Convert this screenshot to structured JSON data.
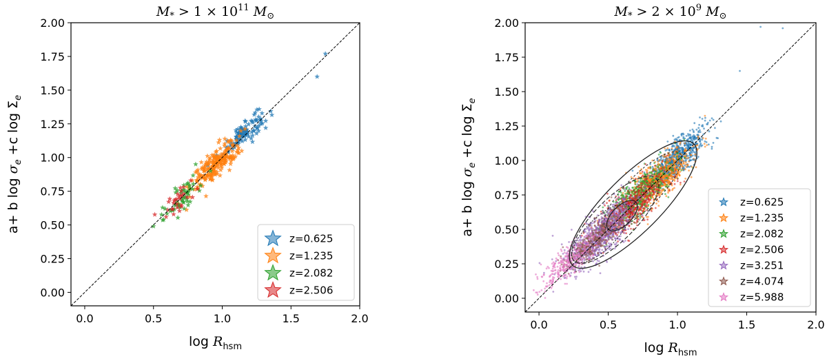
{
  "chart_data": [
    {
      "type": "scatter",
      "title": "M_* > 1 × 10^11 M_⊙",
      "title_parts": {
        "lhs": "M",
        "sub": "*",
        "op": " > 1 × 10",
        "exp": "11",
        "unit": " M",
        "unit_sub": "⊙"
      },
      "xlabel": "log R_hsm",
      "xlabel_parts": {
        "pre": "log ",
        "var": "R",
        "sub": "hsm"
      },
      "ylabel": "a+ b log σ_e +c log Σ_e",
      "ylabel_parts": {
        "p1": "a+ b log ",
        "v1": "σ",
        "s1": "e",
        "p2": " +c log Σ",
        "s2": "e"
      },
      "xlim": [
        -0.1,
        2.0
      ],
      "ylim": [
        -0.1,
        2.0
      ],
      "xticks": [
        "0.0",
        "0.5",
        "1.0",
        "1.5",
        "2.0"
      ],
      "yticks": [
        "0.00",
        "0.25",
        "0.50",
        "0.75",
        "1.00",
        "1.25",
        "1.50",
        "1.75",
        "2.00"
      ],
      "marker": "star",
      "legend": "lower-right",
      "one_to_one_line": true,
      "series": [
        {
          "name": "z=0.625",
          "color": "#1f77b4",
          "center": [
            1.15,
            1.18
          ],
          "spread": 0.1,
          "count": 110,
          "extra": [
            [
              1.69,
              1.6
            ],
            [
              1.75,
              1.77
            ]
          ]
        },
        {
          "name": "z=1.235",
          "color": "#ff7f0e",
          "center": [
            0.95,
            0.95
          ],
          "spread": 0.12,
          "count": 210,
          "extra": []
        },
        {
          "name": "z=2.082",
          "color": "#2ca02c",
          "center": [
            0.72,
            0.72
          ],
          "spread": 0.12,
          "count": 55,
          "extra": [
            [
              0.5,
              0.49
            ]
          ]
        },
        {
          "name": "z=2.506",
          "color": "#d62728",
          "center": [
            0.66,
            0.66
          ],
          "spread": 0.1,
          "count": 30,
          "extra": []
        }
      ]
    },
    {
      "type": "scatter",
      "title": "M_* > 2 × 10^9 M_⊙",
      "title_parts": {
        "lhs": "M",
        "sub": "*",
        "op": " > 2 × 10",
        "exp": "9",
        "unit": " M",
        "unit_sub": "⊙"
      },
      "xlabel": "log R_hsm",
      "xlabel_parts": {
        "pre": "log ",
        "var": "R",
        "sub": "hsm"
      },
      "ylabel": "a+ b log σ_e +c log Σ_e",
      "ylabel_parts": {
        "p1": "a+ b log ",
        "v1": "σ",
        "s1": "e",
        "p2": " +c log Σ",
        "s2": "e"
      },
      "xlim": [
        -0.1,
        2.0
      ],
      "ylim": [
        -0.1,
        2.0
      ],
      "xticks": [
        "0.0",
        "0.5",
        "1.0",
        "1.5",
        "2.0"
      ],
      "yticks": [
        "0.00",
        "0.25",
        "0.50",
        "0.75",
        "1.00",
        "1.25",
        "1.50",
        "1.75",
        "2.00"
      ],
      "marker": "dot",
      "legend": "lower-right",
      "one_to_one_line": true,
      "contours": true,
      "series": [
        {
          "name": "z=0.625",
          "color": "#1f77b4",
          "center": [
            1.0,
            1.02
          ],
          "spread": 0.14,
          "count": 700,
          "extra": [
            [
              1.6,
              1.97
            ],
            [
              1.76,
              1.96
            ],
            [
              1.45,
              1.65
            ]
          ]
        },
        {
          "name": "z=1.235",
          "color": "#ff7f0e",
          "center": [
            0.85,
            0.85
          ],
          "spread": 0.16,
          "count": 800,
          "extra": []
        },
        {
          "name": "z=2.082",
          "color": "#2ca02c",
          "center": [
            0.72,
            0.74
          ],
          "spread": 0.16,
          "count": 600,
          "extra": []
        },
        {
          "name": "z=2.506",
          "color": "#d62728",
          "center": [
            0.66,
            0.66
          ],
          "spread": 0.16,
          "count": 600,
          "extra": []
        },
        {
          "name": "z=3.251",
          "color": "#9467bd",
          "center": [
            0.45,
            0.46
          ],
          "spread": 0.17,
          "count": 900,
          "extra": []
        },
        {
          "name": "z=4.074",
          "color": "#8c564b",
          "center": [
            0.4,
            0.42
          ],
          "spread": 0.13,
          "count": 350,
          "extra": []
        },
        {
          "name": "z=5.988",
          "color": "#e377c2",
          "center": [
            0.2,
            0.25
          ],
          "spread": 0.13,
          "count": 300,
          "extra": []
        }
      ]
    }
  ]
}
